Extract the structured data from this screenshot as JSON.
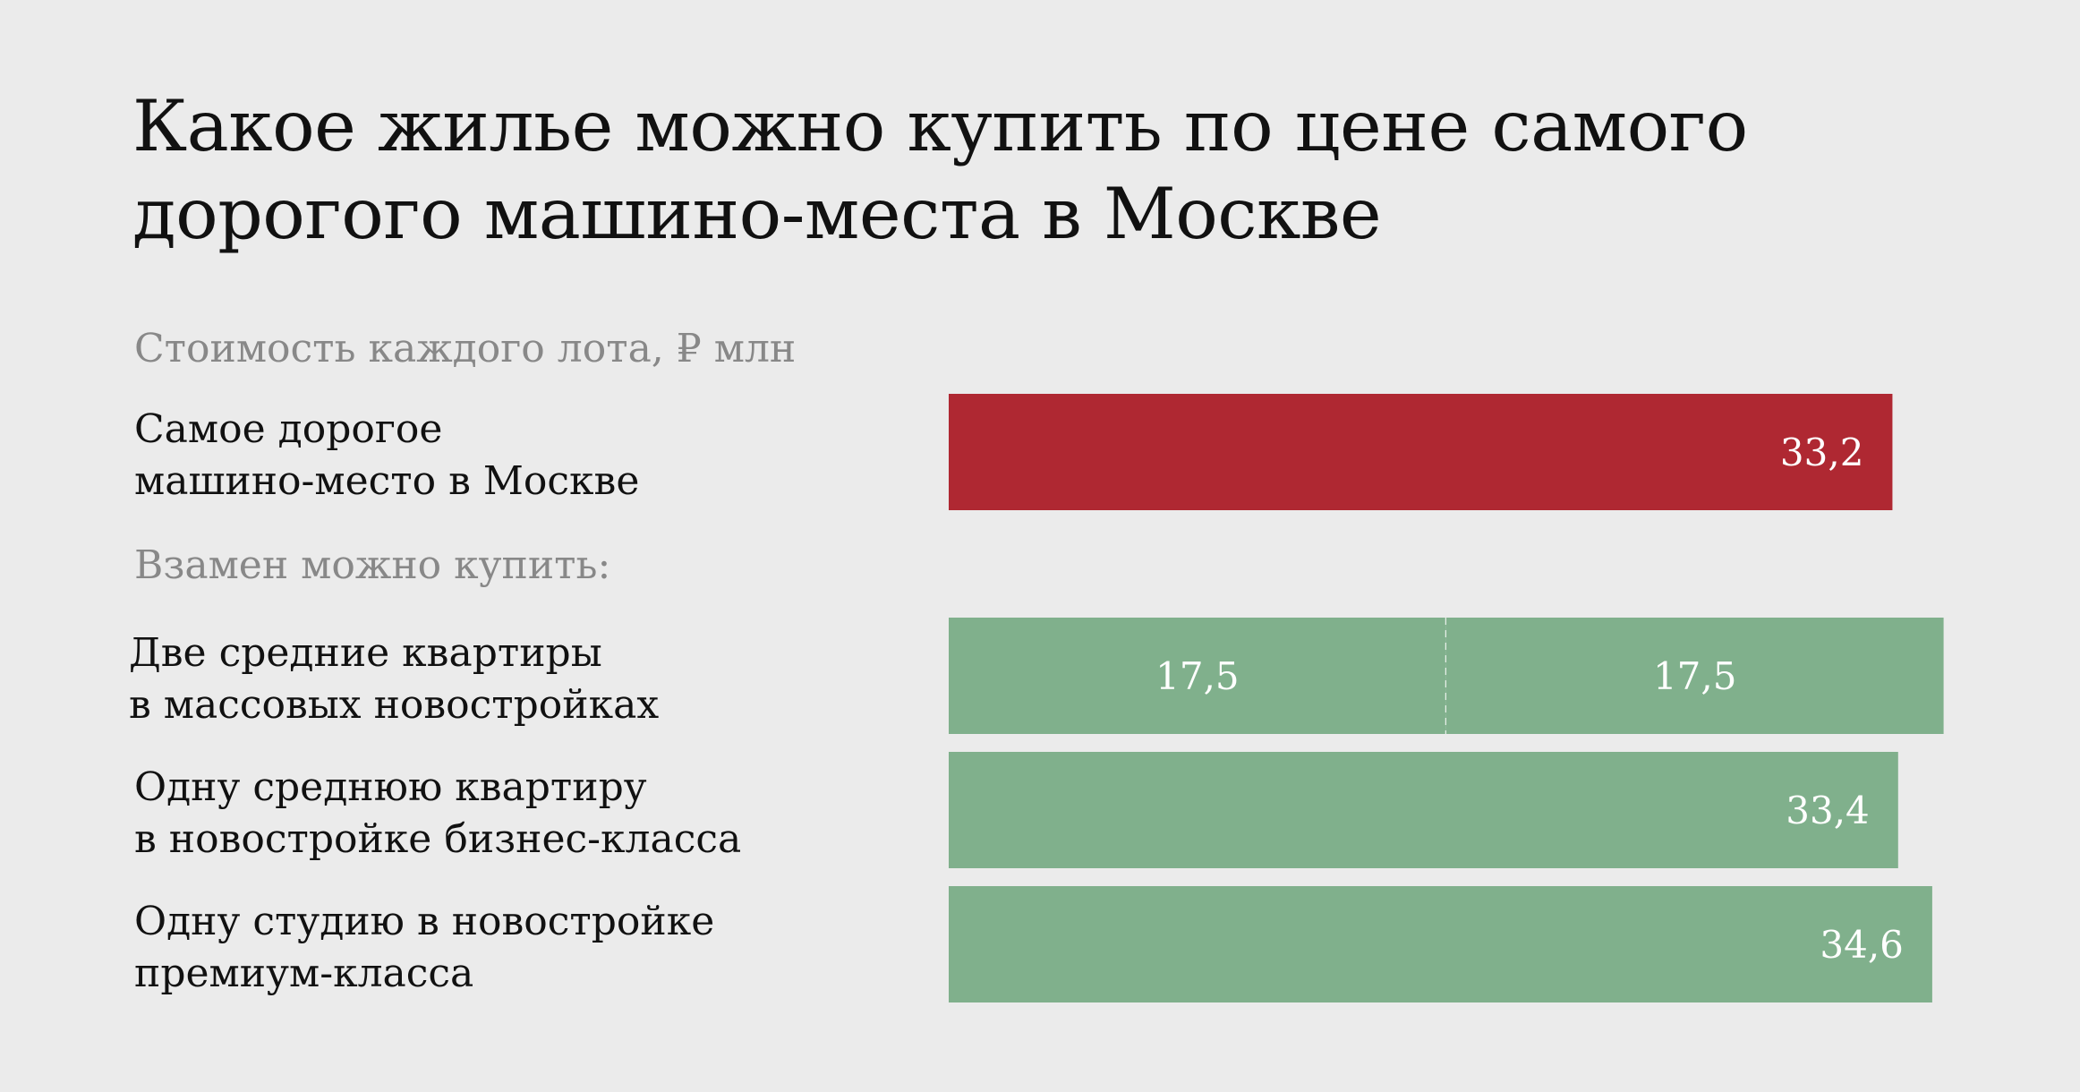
{
  "title_line1": "Какое жилье можно купить по цене самого",
  "title_line2": "дорогого машино-места в Москве",
  "subtitle": "Стоимость каждого лота, ₽ млн",
  "section_label": "Взамен можно купить:",
  "colors": {
    "parking": "#af2832",
    "housing": "#80b08c",
    "value_text": "#ffffff"
  },
  "rows": [
    {
      "label_line1": "Самое дорогое",
      "label_line2": "машино-место в Москве"
    },
    {
      "label_line1": "Две средние квартиры",
      "label_line2": "в массовых новостройках"
    },
    {
      "label_line1": "Одну среднюю квартиру",
      "label_line2": "в новостройке бизнес-класса"
    },
    {
      "label_line1": "Одну студию в новостройке",
      "label_line2": "премиум-класса"
    }
  ],
  "chart_data": {
    "type": "bar",
    "orientation": "horizontal",
    "stacked": true,
    "categories": [
      "Самое дорогое машино-место в Москве",
      "Две средние квартиры в массовых новостройках",
      "Одну среднюю квартиру в новостройке бизнес-класса",
      "Одну студию в новостройке премиум-класса"
    ],
    "bars": [
      {
        "segments": [
          {
            "value": 33.2,
            "label": "33,2"
          }
        ],
        "color": "#af2832"
      },
      {
        "segments": [
          {
            "value": 17.5,
            "label": "17,5"
          },
          {
            "value": 17.5,
            "label": "17,5"
          }
        ],
        "color": "#80b08c"
      },
      {
        "segments": [
          {
            "value": 33.4,
            "label": "33,4"
          }
        ],
        "color": "#80b08c"
      },
      {
        "segments": [
          {
            "value": 34.6,
            "label": "34,6"
          }
        ],
        "color": "#80b08c"
      }
    ],
    "title": "Какое жилье можно купить по цене самого дорогого машино-места в Москве",
    "subtitle": "Стоимость каждого лота, ₽ млн",
    "xlim": [
      0,
      35
    ],
    "grid": false,
    "legend": "none"
  }
}
